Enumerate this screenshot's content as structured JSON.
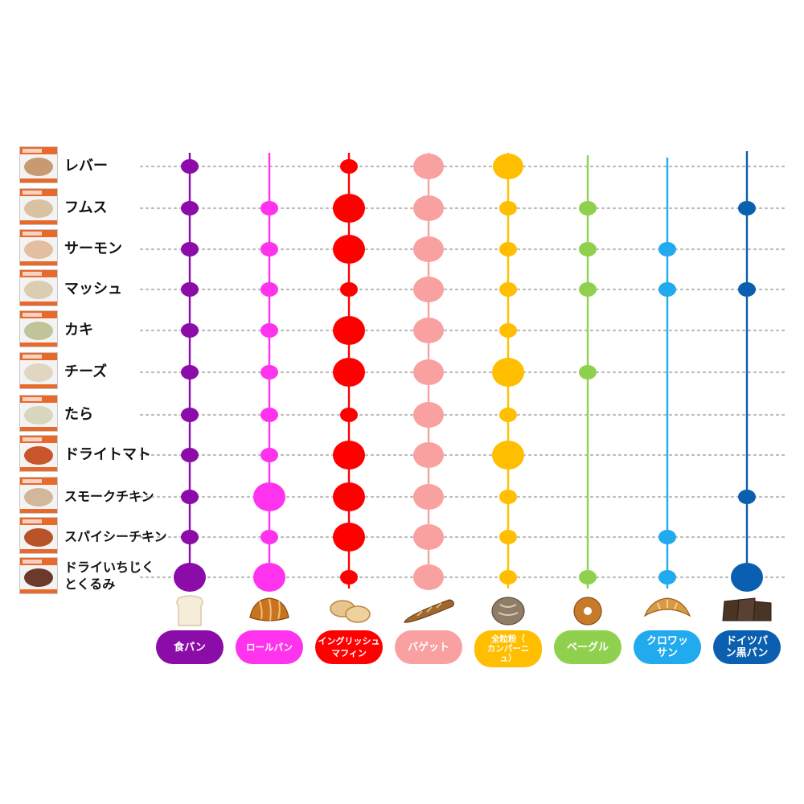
{
  "chart_data": {
    "type": "dot-matrix",
    "rows": [
      "レバー",
      "フムス",
      "サーモン",
      "マッシュ",
      "カキ",
      "チーズ",
      "たら",
      "ドライトマト",
      "スモークチキン",
      "スパイシーチキン",
      "ドライいちじく\nとくるみ"
    ],
    "columns": [
      {
        "name": "食パン",
        "color": "#8B0CA8",
        "icon": "bread-slice-icon"
      },
      {
        "name": "ロールパン",
        "color": "#FF33EE",
        "icon": "butter-roll-icon"
      },
      {
        "name": "イングリッシュ\nマフィン",
        "color": "#FF0000",
        "icon": "english-muffin-icon"
      },
      {
        "name": "バゲット",
        "color": "#F9A0A0",
        "icon": "baguette-icon"
      },
      {
        "name": "全粒粉（\nカンパーニ\nュ）",
        "color": "#FFBF00",
        "icon": "campagne-loaf-icon"
      },
      {
        "name": "ベーグル",
        "color": "#8FD14F",
        "icon": "bagel-icon"
      },
      {
        "name": "クロワッ\nサン",
        "color": "#22AAEE",
        "icon": "croissant-icon"
      },
      {
        "name": "ドイツパ\nン黒パン",
        "color": "#0B5FB0",
        "icon": "rye-bread-icon"
      }
    ],
    "values": [
      [
        1,
        0,
        1,
        2,
        2,
        0,
        0,
        0
      ],
      [
        1,
        1,
        3,
        2,
        1,
        1,
        0,
        1
      ],
      [
        1,
        1,
        3,
        2,
        1,
        1,
        1,
        0
      ],
      [
        1,
        1,
        1,
        2,
        1,
        1,
        1,
        1
      ],
      [
        1,
        1,
        3,
        2,
        1,
        0,
        0,
        0
      ],
      [
        1,
        1,
        3,
        2,
        3,
        1,
        0,
        0
      ],
      [
        1,
        1,
        1,
        2,
        1,
        0,
        0,
        0
      ],
      [
        1,
        1,
        3,
        2,
        3,
        0,
        0,
        0
      ],
      [
        1,
        3,
        3,
        2,
        1,
        0,
        0,
        1
      ],
      [
        1,
        1,
        3,
        2,
        1,
        0,
        1,
        0
      ],
      [
        3,
        3,
        1,
        2,
        1,
        1,
        1,
        3
      ]
    ],
    "value_scale": {
      "0": "none",
      "1": "small",
      "2": "medium",
      "3": "large"
    },
    "grid": "dotted-rows",
    "row_thumbnails": [
      "#c89a72",
      "#d8c2a2",
      "#e2bfa0",
      "#dccdb2",
      "#bfc49a",
      "#e0d6c2",
      "#d8d6be",
      "#c9552a",
      "#d2b89a",
      "#b8542a",
      "#6b3a2a"
    ]
  }
}
